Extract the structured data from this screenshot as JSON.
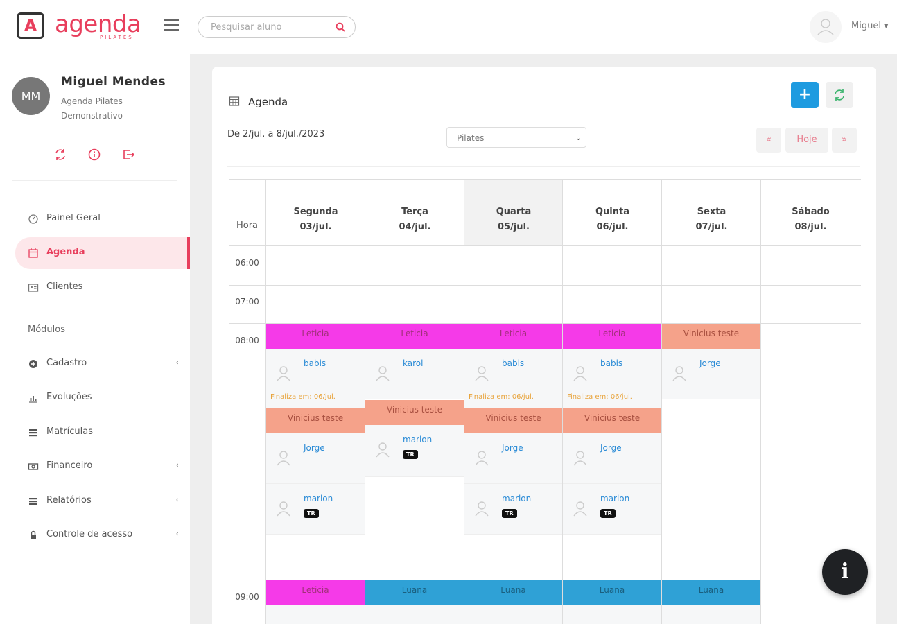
{
  "brand": {
    "name": "agenda",
    "sub": "PILATES"
  },
  "search": {
    "placeholder": "Pesquisar aluno"
  },
  "topbar": {
    "user_name": "Miguel ▾"
  },
  "profile": {
    "initials": "MM",
    "name": "Miguel Mendes",
    "subtitle": "Agenda Pilates Demonstrativo"
  },
  "nav": {
    "painel": "Painel Geral",
    "agenda": "Agenda",
    "clientes": "Clientes",
    "modulos": "Módulos",
    "cadastro": "Cadastro",
    "evolucoes": "Evoluções",
    "matriculas": "Matrículas",
    "financeiro": "Financeiro",
    "relatorios": "Relatórios",
    "controle": "Controle de acesso",
    "arrow": "‹"
  },
  "card": {
    "title": "Agenda",
    "add_label": "+",
    "range": "De 2/jul. a 8/jul./2023",
    "select_value": "Pilates",
    "prev_label": "«",
    "today_label": "Hoje",
    "next_label": "»"
  },
  "calendar": {
    "hora": "Hora",
    "days": [
      {
        "name": "Segunda",
        "date": "03/jul."
      },
      {
        "name": "Terça",
        "date": "04/jul."
      },
      {
        "name": "Quarta",
        "date": "05/jul."
      },
      {
        "name": "Quinta",
        "date": "06/jul."
      },
      {
        "name": "Sexta",
        "date": "07/jul."
      },
      {
        "name": "Sábado",
        "date": "08/jul."
      }
    ],
    "times": [
      "06:00",
      "07:00",
      "08:00",
      "09:00"
    ],
    "events": {
      "leticia": "Leticia",
      "vinicius": "Vinicius teste",
      "luana": "Luana",
      "babis": "babis",
      "karol": "karol",
      "marlon": "marlon",
      "jorge": "Jorge",
      "badge_tr": "TR",
      "finaliza": "Finaliza em: 06/jul."
    }
  },
  "colors": {
    "accent": "#e83e5c",
    "pink": "#f53ae8",
    "salmon": "#f5a28a",
    "blue": "#2fa1d6"
  },
  "info_label": "i"
}
